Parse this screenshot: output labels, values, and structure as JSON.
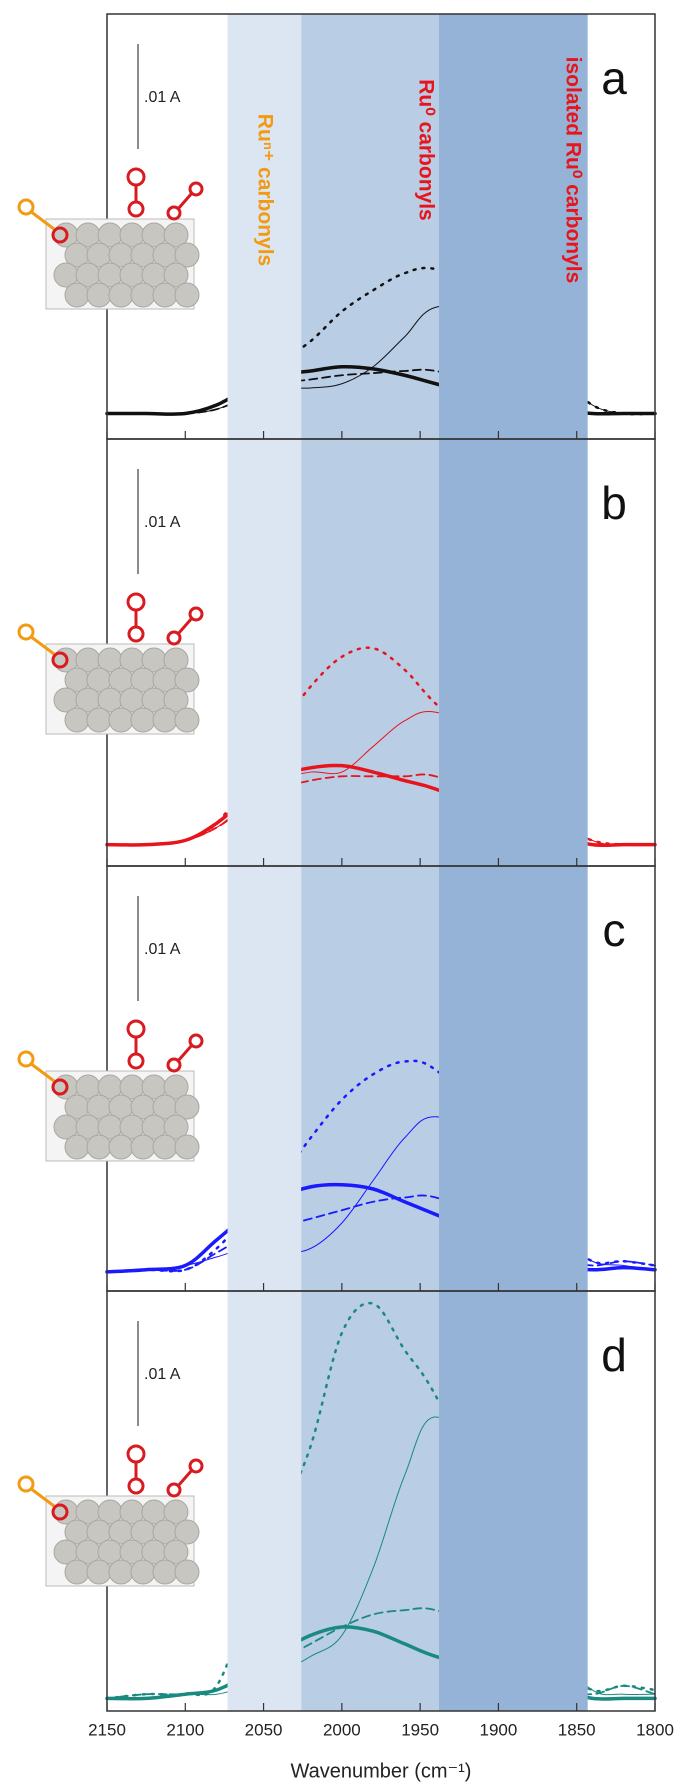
{
  "chart_data": [
    {
      "type": "line",
      "panel_label": "a",
      "scale_bar_label": ".01 A",
      "x": [
        2150,
        2125,
        2100,
        2080,
        2060,
        2040,
        2020,
        2000,
        1980,
        1960,
        1940,
        1900,
        1860,
        1840,
        1820,
        1800
      ],
      "xlim": [
        2150,
        1800
      ],
      "xticks": [
        2150,
        2100,
        2050,
        2000,
        1950,
        1900,
        1850,
        1800
      ],
      "ylim": [
        0,
        1
      ],
      "series": [
        {
          "color": "#111111",
          "linestyle": "solid",
          "linewidth": 3.5,
          "values": [
            0.06,
            0.06,
            0.06,
            0.08,
            0.12,
            0.15,
            0.16,
            0.17,
            0.165,
            0.15,
            0.13,
            0.09,
            0.07,
            0.06,
            0.06,
            0.06
          ]
        },
        {
          "color": "#111111",
          "linestyle": "dashed",
          "linewidth": 1.8,
          "values": [
            0.06,
            0.06,
            0.06,
            0.07,
            0.1,
            0.13,
            0.14,
            0.15,
            0.155,
            0.16,
            0.16,
            0.12,
            0.08,
            0.06,
            0.06,
            0.06
          ]
        },
        {
          "color": "#111111",
          "linestyle": "dotted",
          "linewidth": 2.5,
          "values": [
            0.06,
            0.06,
            0.06,
            0.08,
            0.13,
            0.18,
            0.23,
            0.3,
            0.35,
            0.39,
            0.4,
            0.35,
            0.15,
            0.08,
            0.06,
            0.06
          ]
        },
        {
          "color": "#111111",
          "linestyle": "solid",
          "linewidth": 1,
          "values": [
            0.06,
            0.06,
            0.06,
            0.07,
            0.1,
            0.12,
            0.12,
            0.13,
            0.17,
            0.24,
            0.31,
            0.3,
            0.15,
            0.08,
            0.06,
            0.06
          ]
        }
      ]
    },
    {
      "type": "line",
      "panel_label": "b",
      "scale_bar_label": ".01 A",
      "x": [
        2150,
        2125,
        2100,
        2080,
        2060,
        2040,
        2020,
        2000,
        1980,
        1960,
        1940,
        1900,
        1860,
        1840,
        1820,
        1800
      ],
      "xlim": [
        2150,
        1800
      ],
      "xticks": [
        2150,
        2100,
        2050,
        2000,
        1950,
        1900,
        1850,
        1800
      ],
      "ylim": [
        0,
        1
      ],
      "series": [
        {
          "color": "#e8141c",
          "linestyle": "solid",
          "linewidth": 3.5,
          "values": [
            0.05,
            0.05,
            0.06,
            0.1,
            0.16,
            0.21,
            0.23,
            0.235,
            0.22,
            0.2,
            0.18,
            0.12,
            0.07,
            0.05,
            0.05,
            0.05
          ]
        },
        {
          "color": "#e8141c",
          "linestyle": "dashed",
          "linewidth": 1.8,
          "values": [
            0.05,
            0.05,
            0.06,
            0.09,
            0.14,
            0.18,
            0.2,
            0.21,
            0.21,
            0.21,
            0.21,
            0.15,
            0.08,
            0.05,
            0.05,
            0.05
          ]
        },
        {
          "color": "#e8141c",
          "linestyle": "dotted",
          "linewidth": 2.5,
          "values": [
            0.05,
            0.05,
            0.06,
            0.1,
            0.2,
            0.32,
            0.42,
            0.49,
            0.51,
            0.46,
            0.38,
            0.25,
            0.1,
            0.06,
            0.05,
            0.05
          ]
        },
        {
          "color": "#e8141c",
          "linestyle": "solid",
          "linewidth": 1,
          "values": [
            0.05,
            0.05,
            0.06,
            0.09,
            0.15,
            0.2,
            0.22,
            0.22,
            0.28,
            0.34,
            0.36,
            0.3,
            0.12,
            0.06,
            0.05,
            0.05
          ]
        }
      ]
    },
    {
      "type": "line",
      "panel_label": "c",
      "scale_bar_label": ".01 A",
      "x": [
        2150,
        2125,
        2100,
        2080,
        2060,
        2040,
        2020,
        2000,
        1980,
        1960,
        1940,
        1900,
        1860,
        1840,
        1820,
        1800
      ],
      "xlim": [
        2150,
        1800
      ],
      "xticks": [
        2150,
        2100,
        2050,
        2000,
        1950,
        1900,
        1850,
        1800
      ],
      "ylim": [
        0,
        1
      ],
      "series": [
        {
          "color": "#1a1aff",
          "linestyle": "solid",
          "linewidth": 3.5,
          "values": [
            0.045,
            0.05,
            0.06,
            0.12,
            0.18,
            0.22,
            0.245,
            0.25,
            0.24,
            0.21,
            0.18,
            0.12,
            0.06,
            0.05,
            0.055,
            0.05
          ]
        },
        {
          "color": "#1a1aff",
          "linestyle": "dashed",
          "linewidth": 1.8,
          "values": [
            0.045,
            0.05,
            0.05,
            0.09,
            0.13,
            0.15,
            0.17,
            0.19,
            0.21,
            0.22,
            0.22,
            0.16,
            0.08,
            0.06,
            0.07,
            0.06
          ]
        },
        {
          "color": "#1a1aff",
          "linestyle": "dotted",
          "linewidth": 2.5,
          "values": [
            0.045,
            0.05,
            0.05,
            0.1,
            0.18,
            0.26,
            0.36,
            0.45,
            0.51,
            0.54,
            0.52,
            0.38,
            0.14,
            0.07,
            0.07,
            0.06
          ]
        },
        {
          "color": "#1a1aff",
          "linestyle": "solid",
          "linewidth": 1,
          "values": [
            0.045,
            0.05,
            0.06,
            0.08,
            0.1,
            0.09,
            0.1,
            0.16,
            0.26,
            0.36,
            0.41,
            0.35,
            0.13,
            0.07,
            0.06,
            0.05
          ]
        }
      ]
    },
    {
      "type": "line",
      "panel_label": "d",
      "scale_bar_label": ".01 A",
      "xlabel": "Wavenumber (cm⁻¹)",
      "x": [
        2150,
        2125,
        2100,
        2080,
        2060,
        2040,
        2020,
        2000,
        1980,
        1960,
        1940,
        1900,
        1860,
        1840,
        1820,
        1800
      ],
      "xlim": [
        2150,
        1800
      ],
      "xticks": [
        2150,
        2100,
        2050,
        2000,
        1950,
        1900,
        1850,
        1800
      ],
      "ylim": [
        0,
        1
      ],
      "series": [
        {
          "color": "#1a8a80",
          "linestyle": "solid",
          "linewidth": 3.5,
          "values": [
            0.03,
            0.03,
            0.04,
            0.05,
            0.09,
            0.14,
            0.18,
            0.2,
            0.19,
            0.16,
            0.13,
            0.09,
            0.05,
            0.03,
            0.03,
            0.03
          ]
        },
        {
          "color": "#1a8a80",
          "linestyle": "dashed",
          "linewidth": 1.8,
          "values": [
            0.03,
            0.04,
            0.04,
            0.05,
            0.08,
            0.12,
            0.16,
            0.2,
            0.23,
            0.24,
            0.24,
            0.18,
            0.06,
            0.04,
            0.06,
            0.04
          ]
        },
        {
          "color": "#1a8a80",
          "linestyle": "dotted",
          "linewidth": 2.5,
          "values": [
            0.03,
            0.04,
            0.04,
            0.06,
            0.25,
            0.45,
            0.63,
            0.9,
            0.97,
            0.86,
            0.75,
            0.45,
            0.12,
            0.05,
            0.06,
            0.05
          ]
        },
        {
          "color": "#1a8a80",
          "linestyle": "solid",
          "linewidth": 1,
          "values": [
            0.03,
            0.03,
            0.04,
            0.04,
            0.06,
            0.09,
            0.13,
            0.18,
            0.34,
            0.56,
            0.7,
            0.55,
            0.15,
            0.05,
            0.04,
            0.04
          ]
        }
      ]
    }
  ],
  "bands": [
    {
      "from": 2073,
      "to": 2026,
      "color": "#dce6f2",
      "label": "Ruⁿ⁺ carbonyls",
      "label_color": "#f29a12"
    },
    {
      "from": 2026,
      "to": 1938,
      "color": "#b9cde5",
      "label": "Ru⁰ carbonyls",
      "label_color": "#e8141c"
    },
    {
      "from": 1938,
      "to": 1843,
      "color": "#95b3d7",
      "label": "isolated Ru⁰ carbonyls",
      "label_color": "#e8141c"
    }
  ]
}
